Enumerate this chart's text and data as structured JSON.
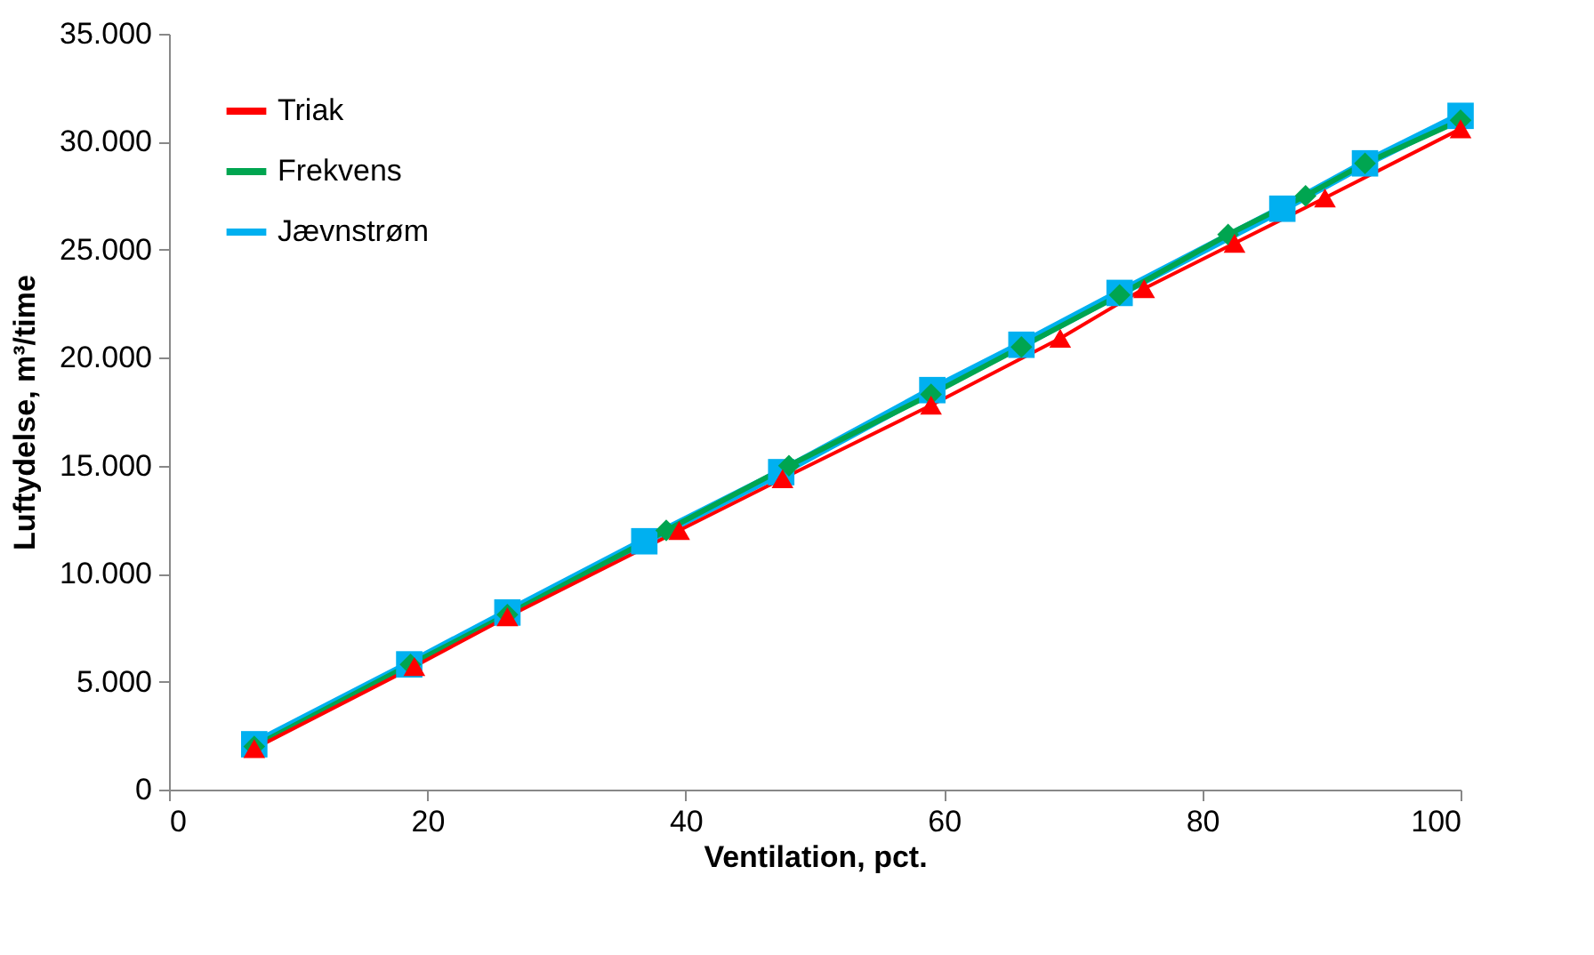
{
  "chart_data": {
    "type": "line",
    "xlabel": "Ventilation, pct.",
    "ylabel": "Luftydelse, m³/time",
    "xlim": [
      0,
      100
    ],
    "xticks": [
      0,
      20,
      40,
      60,
      80,
      100
    ],
    "ylim": [
      0,
      35000
    ],
    "yticks": [
      {
        "value": 0,
        "label": "0"
      },
      {
        "value": 5000,
        "label": "5.000"
      },
      {
        "value": 10000,
        "label": "10.000"
      },
      {
        "value": 15000,
        "label": "15.000"
      },
      {
        "value": 20000,
        "label": "20.000"
      },
      {
        "value": 25000,
        "label": "25.000"
      },
      {
        "value": 30000,
        "label": "30.000"
      },
      {
        "value": 35000,
        "label": "35.000"
      }
    ],
    "grid": false,
    "legend": "top left",
    "line_style": "solid",
    "series": [
      {
        "name": "Triak",
        "color": "#ff0000",
        "marker": "triangle",
        "x": [
          6.6,
          19,
          26.2,
          39.5,
          47.5,
          59,
          69,
          75.5,
          82.5,
          89.5,
          100
        ],
        "values": [
          1900,
          5700,
          8000,
          12000,
          14400,
          17800,
          20900,
          23200,
          25300,
          27400,
          30600
        ]
      },
      {
        "name": "Frekvens",
        "color": "#00a550",
        "marker": "diamond",
        "x": [
          6.6,
          18.7,
          26.2,
          38.5,
          48,
          59,
          66,
          73.6,
          82,
          88,
          92.6,
          100
        ],
        "values": [
          2000,
          5800,
          8100,
          12000,
          15000,
          18300,
          20500,
          22900,
          25700,
          27500,
          29000,
          31000
        ]
      },
      {
        "name": "Jævnstrøm",
        "color": "#00b0f0",
        "marker": "square",
        "x": [
          6.6,
          18.6,
          26.2,
          36.8,
          47.4,
          59.1,
          66,
          73.6,
          86.2,
          92.6,
          100
        ],
        "values": [
          2100,
          5800,
          8200,
          11500,
          14700,
          18500,
          20600,
          23000,
          26900,
          29000,
          31200
        ]
      }
    ]
  }
}
